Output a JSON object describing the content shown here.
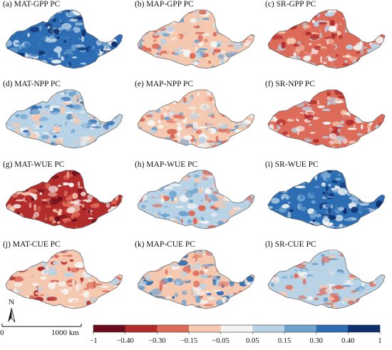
{
  "panels": [
    {
      "title": "(a) MAT-GPP PC",
      "dominant": "blue"
    },
    {
      "title": "(b) MAP-GPP PC",
      "dominant": "mixed-red-center"
    },
    {
      "title": "(c) SR-GPP PC",
      "dominant": "red"
    },
    {
      "title": "(d) MAT-NPP PC",
      "dominant": "blue-white"
    },
    {
      "title": "(e) MAP-NPP PC",
      "dominant": "mixed-red-center"
    },
    {
      "title": "(f) SR-NPP PC",
      "dominant": "red"
    },
    {
      "title": "(g) MAT-WUE PC",
      "dominant": "deep-red"
    },
    {
      "title": "(h) MAP-WUE PC",
      "dominant": "mixed"
    },
    {
      "title": "(i) SR-WUE PC",
      "dominant": "blue"
    },
    {
      "title": "(j) MAT-CUE PC",
      "dominant": "deep-red-center"
    },
    {
      "title": "(k) MAP-CUE PC",
      "dominant": "mixed-blue-edge"
    },
    {
      "title": "(l) SR-CUE PC",
      "dominant": "mixed"
    }
  ],
  "legend": {
    "ticks": [
      "−1",
      "−0.40",
      "−0.30",
      "−0.15",
      "−0.05",
      "0.05",
      "0.15",
      "0.30",
      "0.40",
      "1"
    ],
    "colors": [
      "#6b0d1c",
      "#b22c2c",
      "#dd6b5a",
      "#f5c8b0",
      "#f4f4f2",
      "#b9d3e6",
      "#6ea3cf",
      "#2d6db4",
      "#0d2f6e"
    ]
  },
  "scale_bar": {
    "start": "0",
    "end": "1000 km"
  },
  "north_arrow": {
    "label": "N"
  }
}
